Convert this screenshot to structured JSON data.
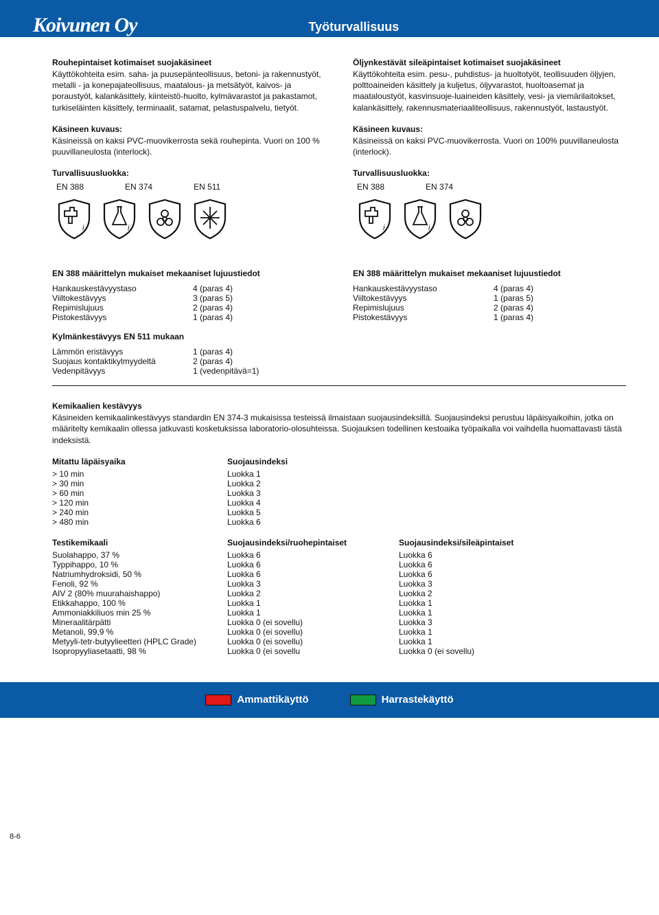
{
  "header": {
    "logo": "Koivunen Oy",
    "title": "Työturvallisuus"
  },
  "left": {
    "title": "Rouhepintaiset kotimaiset suojakäsineet",
    "intro": "Käyttökohteita esim. saha- ja puusepänteollisuus, betoni- ja rakennustyöt, metalli - ja konepajateollisuus, maatalous- ja metsätyöt, kaivos- ja poraustyöt, kalankäsittely, kiinteistö-huolto, kylmävarastot ja pakastamot, turkiseläinten käsittely, terminaalit, satamat, pelastuspalvelu, tietyöt.",
    "desc_h": "Käsineen kuvaus:",
    "desc": "Käsineissä on kaksi PVC-muovikerrosta sekä rouhepinta. Vuori on 100 % puuvillaneulosta (interlock).",
    "safety_h": "Turvallisuusluokka:",
    "safety_labels": [
      "EN 388",
      "EN 374",
      "EN 511"
    ],
    "icons": [
      "hammer",
      "flask",
      "biohazard",
      "snow"
    ],
    "spec_h": "EN 388 määrittelyn mukaiset mekaaniset lujuustiedot",
    "specs": [
      [
        "Hankauskestävyystaso",
        "4 (paras 4)"
      ],
      [
        "Viiltokestävyys",
        "3 (paras 5)"
      ],
      [
        "Repimislujuus",
        "2 (paras 4)"
      ],
      [
        "Pistokestävyys",
        "1 (paras 4)"
      ]
    ],
    "cold_h": "Kylmänkestävyys EN 511 mukaan",
    "cold": [
      [
        "Lämmön eristävyys",
        "1 (paras 4)"
      ],
      [
        "Suojaus kontaktikylmyydeltä",
        "2 (paras 4)"
      ],
      [
        "Vedenpitävyys",
        "1 (vedenpitävä=1)"
      ]
    ]
  },
  "right": {
    "title": "Öljynkestävät sileäpintaiset kotimaiset suojakäsineet",
    "intro": "Käyttökohteita  esim. pesu-, puhdistus- ja huoltotyöt, teollisuuden öljyjen, polttoaineiden käsittely ja kuljetus, öljyvarastot, huoltoasemat ja maataloustyöt, kasvinsuoje-luaineiden käsittely, vesi- ja viemärilaitokset, kalankäsittely, rakennusmateriaaliteollisuus, rakennustyöt, lastaustyöt.",
    "desc_h": "Käsineen kuvaus:",
    "desc": "Käsineissä  on kaksi PVC-muovikerrosta. Vuori on 100% puuvillaneulosta (interlock).",
    "safety_h": "Turvallisuusluokka:",
    "safety_labels": [
      "EN 388",
      "EN 374"
    ],
    "icons": [
      "hammer",
      "flask",
      "biohazard"
    ],
    "spec_h": "EN 388 määrittelyn mukaiset mekaaniset lujuustiedot",
    "specs": [
      [
        "Hankauskestävyystaso",
        "4 (paras 4)"
      ],
      [
        "Viiltokestävyys",
        "1 (paras 5)"
      ],
      [
        "Repimislujuus",
        "2 (paras 4)"
      ],
      [
        "Pistokestävyys",
        "1 (paras 4)"
      ]
    ]
  },
  "chem": {
    "h": "Kemikaalien kestävyys",
    "intro": "Käsineiden kemikaalinkestävyys standardin EN 374-3 mukaisissa testeissä ilmaistaan suojausindeksillä. Suojausindeksi perustuu läpäisyaikoihin, jotka on määritelty kemikaalin ollessa jatkuvasti kosketuksissa laboratorio-olosuhteissa. Suojauksen todellinen kestoaika työpaikalla voi vaihdella huomattavasti tästä indeksistä.",
    "perm_h1": "Mitattu läpäisyaika",
    "perm_h2": "Suojausindeksi",
    "perm": [
      [
        "> 10 min",
        "Luokka 1"
      ],
      [
        "> 30 min",
        "Luokka 2"
      ],
      [
        "> 60 min",
        "Luokka 3"
      ],
      [
        "> 120 min",
        "Luokka 4"
      ],
      [
        "> 240 min",
        "Luokka 5"
      ],
      [
        "> 480 min",
        "Luokka 6"
      ]
    ],
    "test_h": [
      "Testikemikaali",
      "Suojausindeksi/ruohepintaiset",
      "Suojausindeksi/sileäpintaiset"
    ],
    "tests": [
      [
        "Suolahappo, 37 %",
        "Luokka 6",
        "Luokka 6"
      ],
      [
        "Typpihappo, 10 %",
        "Luokka 6",
        "Luokka 6"
      ],
      [
        "Natriumhydroksidi, 50 %",
        "Luokka 6",
        "Luokka 6"
      ],
      [
        "Fenoli, 92 %",
        "Luokka 3",
        "Luokka 3"
      ],
      [
        "AIV 2 (80% muurahaishappo)",
        "Luokka 2",
        "Luokka 2"
      ],
      [
        "Etikkahappo, 100 %",
        "Luokka 1",
        "Luokka 1"
      ],
      [
        "Ammoniakkiliuos min 25 %",
        "Luokka 1",
        "Luokka 1"
      ],
      [
        "Mineraalitärpätti",
        "Luokka 0 (ei sovellu)",
        "Luokka 3"
      ],
      [
        "Metanoli, 99,9 %",
        "Luokka 0 (ei sovellu)",
        "Luokka 1"
      ],
      [
        "Metyyli-tetr-butyylieetteri (HPLC Grade)",
        "Luokka 0 (ei sovellu)",
        "Luokka 1"
      ],
      [
        "Isopropyyliasetaatti, 98 %",
        "Luokka 0 (ei sovellu",
        "Luokka 0 (ei sovellu)"
      ]
    ]
  },
  "page_num": "8-6",
  "footer": {
    "pro_color": "#e31818",
    "pro_label": "Ammattikäyttö",
    "hobby_color": "#0f9a40",
    "hobby_label": "Harrastekäyttö"
  },
  "colors": {
    "header_bg": "#0b5aa5",
    "text": "#111111",
    "page_bg": "#ffffff"
  }
}
